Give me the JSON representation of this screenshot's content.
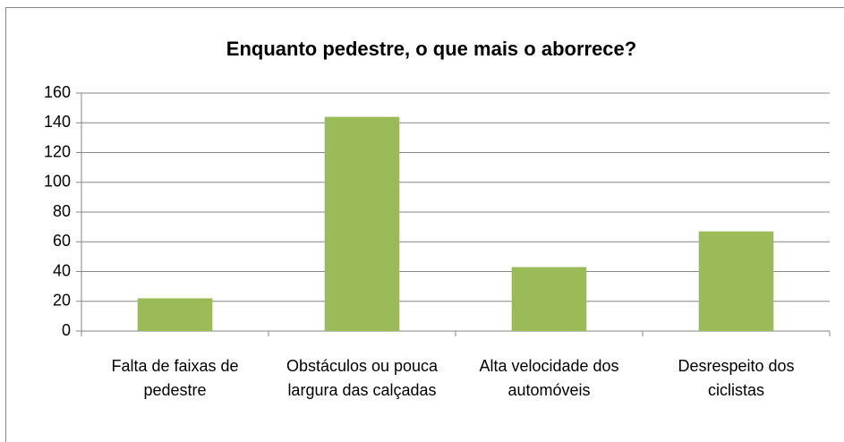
{
  "chart_data": {
    "type": "bar",
    "title": "Enquanto pedestre, o que mais o aborrece?",
    "categories": [
      "Falta de faixas de pedestre",
      "Obstáculos ou pouca largura das calçadas",
      "Alta velocidade dos automóveis",
      "Desrespeito dos ciclistas"
    ],
    "values": [
      22,
      144,
      43,
      67
    ],
    "color": "#9bbb59",
    "ylim": [
      0,
      160
    ],
    "yticks": [
      0,
      20,
      40,
      60,
      80,
      100,
      120,
      140,
      160
    ],
    "grid": true
  }
}
